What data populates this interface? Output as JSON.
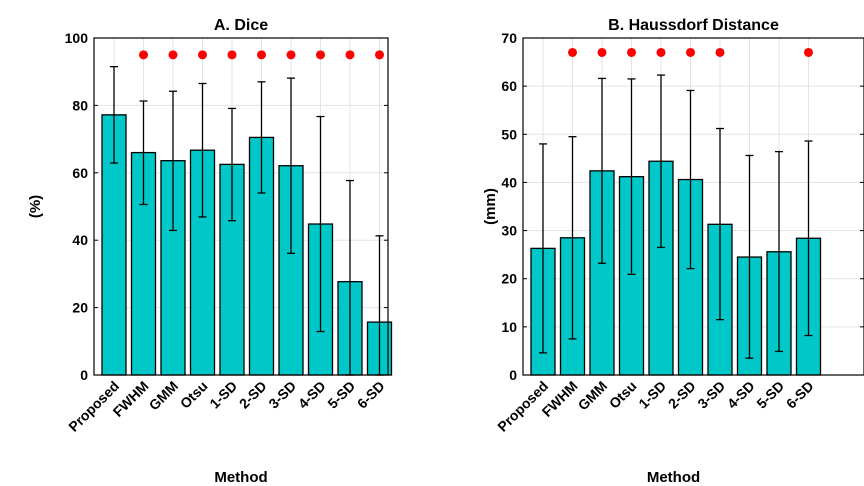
{
  "chart_data": [
    {
      "type": "bar",
      "title": "A. Dice",
      "xlabel": "Method",
      "ylabel": "(%)",
      "ylim": [
        0,
        100
      ],
      "yticks": [
        0,
        20,
        40,
        60,
        80,
        100
      ],
      "grid": true,
      "categories": [
        "Proposed",
        "FWHM",
        "GMM",
        "Otsu",
        "1-SD",
        "2-SD",
        "3-SD",
        "4-SD",
        "5-SD",
        "6-SD"
      ],
      "values": [
        77.2,
        66.0,
        63.6,
        66.7,
        62.5,
        70.5,
        62.1,
        44.8,
        27.7,
        15.7
      ],
      "error_low": [
        62.9,
        50.6,
        42.9,
        46.9,
        45.8,
        54.0,
        36.1,
        12.9,
        0.0,
        0.0
      ],
      "error_high": [
        91.5,
        81.3,
        84.2,
        86.5,
        79.1,
        87.0,
        88.1,
        76.7,
        57.7,
        41.3
      ],
      "significance_markers": [
        false,
        true,
        true,
        true,
        true,
        true,
        true,
        true,
        true,
        true
      ],
      "marker_y": 95,
      "bar_color": "#00c8c8",
      "marker_color": "#ff0000"
    },
    {
      "type": "bar",
      "title": "B. Haussdorf Distance",
      "xlabel": "Method",
      "ylabel": "(mm)",
      "ylim": [
        0,
        70
      ],
      "yticks": [
        0,
        10,
        20,
        30,
        40,
        50,
        60,
        70
      ],
      "grid": true,
      "categories": [
        "Proposed",
        "FWHM",
        "GMM",
        "Otsu",
        "1-SD",
        "2-SD",
        "3-SD",
        "4-SD",
        "5-SD",
        "6-SD"
      ],
      "values": [
        26.3,
        28.5,
        42.4,
        41.2,
        44.4,
        40.6,
        31.3,
        24.5,
        25.6,
        28.4
      ],
      "error_low": [
        4.6,
        7.5,
        23.2,
        20.9,
        26.5,
        22.1,
        11.5,
        3.5,
        4.9,
        8.2
      ],
      "error_high": [
        48.0,
        49.5,
        61.6,
        61.5,
        62.3,
        59.1,
        51.2,
        45.6,
        46.4,
        48.6
      ],
      "significance_markers": [
        false,
        true,
        true,
        true,
        true,
        true,
        true,
        false,
        false,
        true
      ],
      "marker_y": 67,
      "bar_color": "#00c8c8",
      "marker_color": "#ff0000"
    }
  ]
}
